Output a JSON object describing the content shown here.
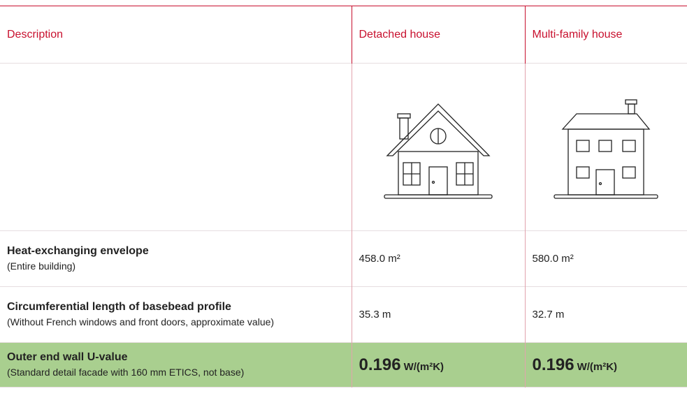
{
  "table": {
    "header": [
      "Description",
      "Detached house",
      "Multi-family house"
    ],
    "rows": [
      {
        "title": "Heat-exchanging envelope",
        "subtitle": "(Entire building)",
        "values": [
          "458.0 m²",
          "580.0 m²"
        ]
      },
      {
        "title": "Circumferential length of basebead profile",
        "subtitle": "(Without French windows and front doors, approximate value)",
        "values": [
          "35.3 m",
          "32.7 m"
        ]
      },
      {
        "title": "Outer end wall U-value",
        "subtitle": "(Standard detail facade with 160 mm ETICS, not base)",
        "values": [
          {
            "number": "0.196",
            "unit": "W/(m²K)"
          },
          {
            "number": "0.196",
            "unit": "W/(m²K)"
          }
        ]
      }
    ]
  }
}
